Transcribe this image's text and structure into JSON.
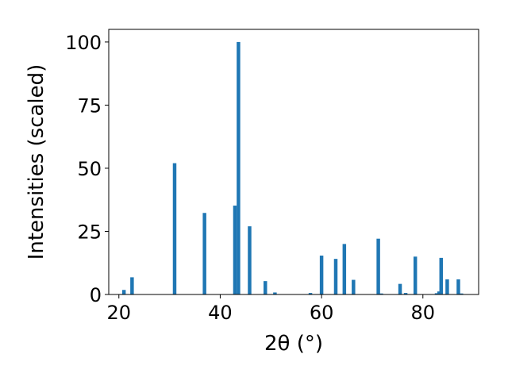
{
  "chart_data": {
    "type": "bar",
    "title": "",
    "xlabel": "2θ (°)",
    "ylabel": "Intensities (scaled)",
    "xlim": [
      18,
      91
    ],
    "ylim": [
      0,
      105
    ],
    "xticks": [
      20,
      40,
      60,
      80
    ],
    "yticks": [
      0,
      25,
      50,
      75,
      100
    ],
    "grid": false,
    "legend": "none",
    "bar_width": 0.7,
    "bar_color": "#1f77b4",
    "peaks": [
      {
        "x": 21.0,
        "y": 1.8
      },
      {
        "x": 22.6,
        "y": 6.8
      },
      {
        "x": 31.0,
        "y": 52.0
      },
      {
        "x": 36.9,
        "y": 32.3
      },
      {
        "x": 42.9,
        "y": 35.2
      },
      {
        "x": 43.6,
        "y": 100.0
      },
      {
        "x": 45.8,
        "y": 27.0
      },
      {
        "x": 48.9,
        "y": 5.3
      },
      {
        "x": 50.8,
        "y": 0.8
      },
      {
        "x": 57.8,
        "y": 0.6
      },
      {
        "x": 60.0,
        "y": 15.4
      },
      {
        "x": 62.8,
        "y": 14.1
      },
      {
        "x": 64.5,
        "y": 20.0
      },
      {
        "x": 66.3,
        "y": 5.8
      },
      {
        "x": 71.2,
        "y": 22.1
      },
      {
        "x": 71.8,
        "y": 0.4
      },
      {
        "x": 75.5,
        "y": 4.2
      },
      {
        "x": 76.6,
        "y": 0.6
      },
      {
        "x": 78.5,
        "y": 15.0
      },
      {
        "x": 82.7,
        "y": 0.5
      },
      {
        "x": 83.2,
        "y": 1.2
      },
      {
        "x": 83.6,
        "y": 14.5
      },
      {
        "x": 84.8,
        "y": 6.0
      },
      {
        "x": 87.0,
        "y": 6.0
      },
      {
        "x": 87.6,
        "y": 0.4
      }
    ]
  }
}
